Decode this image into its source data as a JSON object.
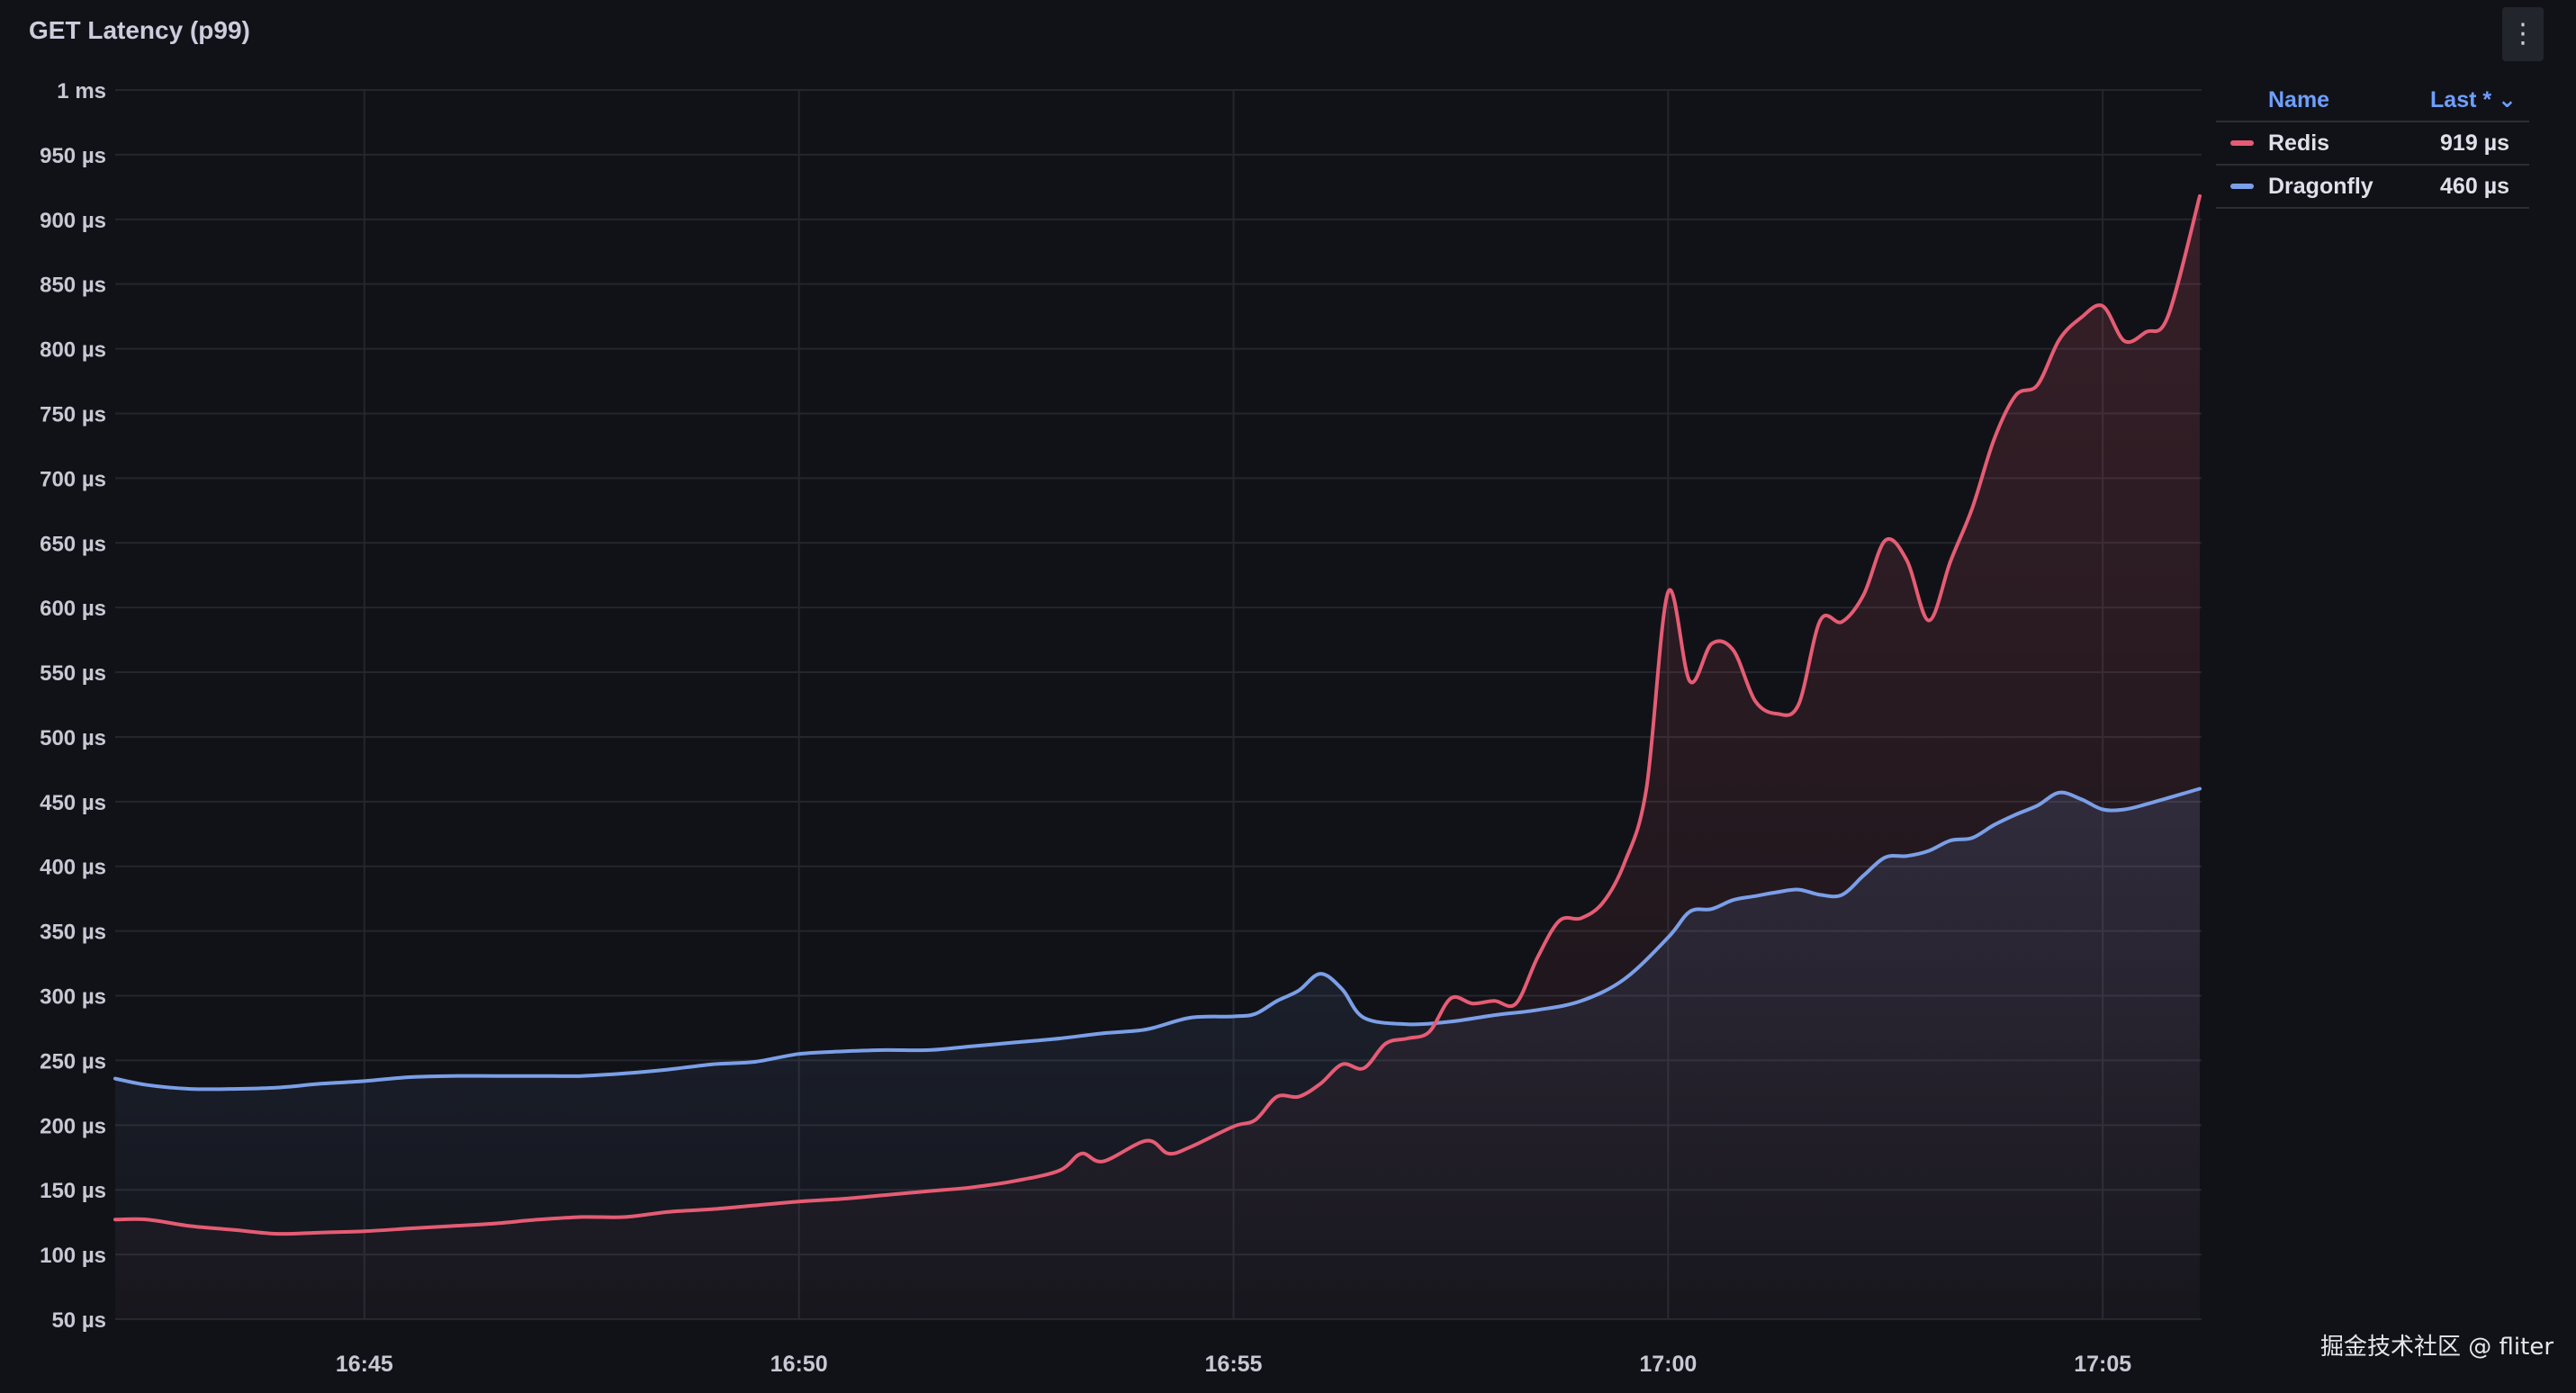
{
  "panel": {
    "title": "GET Latency (p99)",
    "menu_icon": "kebab-menu-icon"
  },
  "legend": {
    "header_name": "Name",
    "header_last": "Last * ⌄",
    "items": [
      {
        "name": "Redis",
        "value": "919 µs",
        "color": "#e55c74"
      },
      {
        "name": "Dragonfly",
        "value": "460 µs",
        "color": "#7b9fe8"
      }
    ]
  },
  "watermark": "掘金技术社区 @ fliter",
  "chart_data": {
    "type": "line",
    "title": "GET Latency (p99)",
    "ylim": [
      50,
      1000
    ],
    "y_ticks": [
      50,
      100,
      150,
      200,
      250,
      300,
      350,
      400,
      450,
      500,
      550,
      600,
      650,
      700,
      750,
      800,
      850,
      900,
      950,
      1000
    ],
    "y_tick_labels": [
      "50 µs",
      "100 µs",
      "150 µs",
      "200 µs",
      "250 µs",
      "300 µs",
      "350 µs",
      "400 µs",
      "450 µs",
      "500 µs",
      "550 µs",
      "600 µs",
      "650 µs",
      "700 µs",
      "750 µs",
      "800 µs",
      "850 µs",
      "900 µs",
      "950 µs",
      "1 ms"
    ],
    "xlim": [
      "16:42:08",
      "17:06:07"
    ],
    "x_ticks": [
      "16:45",
      "16:50",
      "16:55",
      "17:00",
      "17:05"
    ],
    "grid": true,
    "legend_position": "right",
    "series": [
      {
        "name": "Redis",
        "color": "#e55c74",
        "points": [
          [
            "16:42:08",
            127
          ],
          [
            "16:42:30",
            127
          ],
          [
            "16:43:00",
            122
          ],
          [
            "16:43:30",
            119
          ],
          [
            "16:44:00",
            116
          ],
          [
            "16:44:30",
            117
          ],
          [
            "16:45:00",
            118
          ],
          [
            "16:45:30",
            120
          ],
          [
            "16:46:00",
            122
          ],
          [
            "16:46:30",
            124
          ],
          [
            "16:47:00",
            127
          ],
          [
            "16:47:30",
            129
          ],
          [
            "16:48:00",
            129
          ],
          [
            "16:48:30",
            133
          ],
          [
            "16:49:00",
            135
          ],
          [
            "16:49:30",
            138
          ],
          [
            "16:50:00",
            141
          ],
          [
            "16:50:30",
            143
          ],
          [
            "16:51:00",
            146
          ],
          [
            "16:51:30",
            149
          ],
          [
            "16:52:00",
            152
          ],
          [
            "16:52:30",
            157
          ],
          [
            "16:53:00",
            165
          ],
          [
            "16:53:15",
            178
          ],
          [
            "16:53:30",
            172
          ],
          [
            "16:54:00",
            188
          ],
          [
            "16:54:15",
            178
          ],
          [
            "16:54:30",
            183
          ],
          [
            "16:55:00",
            199
          ],
          [
            "16:55:15",
            204
          ],
          [
            "16:55:30",
            222
          ],
          [
            "16:55:45",
            222
          ],
          [
            "16:56:00",
            232
          ],
          [
            "16:56:15",
            247
          ],
          [
            "16:56:30",
            244
          ],
          [
            "16:56:45",
            263
          ],
          [
            "16:57:00",
            267
          ],
          [
            "16:57:15",
            272
          ],
          [
            "16:57:30",
            298
          ],
          [
            "16:57:45",
            294
          ],
          [
            "16:58:00",
            296
          ],
          [
            "16:58:15",
            294
          ],
          [
            "16:58:30",
            330
          ],
          [
            "16:58:45",
            358
          ],
          [
            "16:59:00",
            360
          ],
          [
            "16:59:15",
            372
          ],
          [
            "16:59:30",
            403
          ],
          [
            "16:59:45",
            460
          ],
          [
            "17:00:00",
            612
          ],
          [
            "17:00:15",
            543
          ],
          [
            "17:00:30",
            572
          ],
          [
            "17:00:45",
            567
          ],
          [
            "17:01:00",
            528
          ],
          [
            "17:01:15",
            518
          ],
          [
            "17:01:30",
            525
          ],
          [
            "17:01:45",
            590
          ],
          [
            "17:02:00",
            589
          ],
          [
            "17:02:15",
            610
          ],
          [
            "17:02:30",
            652
          ],
          [
            "17:02:45",
            636
          ],
          [
            "17:03:00",
            590
          ],
          [
            "17:03:15",
            636
          ],
          [
            "17:03:30",
            677
          ],
          [
            "17:03:45",
            730
          ],
          [
            "17:04:00",
            764
          ],
          [
            "17:04:15",
            772
          ],
          [
            "17:04:30",
            807
          ],
          [
            "17:04:45",
            824
          ],
          [
            "17:05:00",
            833
          ],
          [
            "17:05:15",
            806
          ],
          [
            "17:05:30",
            813
          ],
          [
            "17:05:45",
            825
          ],
          [
            "17:06:07",
            918
          ]
        ]
      },
      {
        "name": "Dragonfly",
        "color": "#7b9fe8",
        "points": [
          [
            "16:42:08",
            236
          ],
          [
            "16:42:30",
            231
          ],
          [
            "16:43:00",
            228
          ],
          [
            "16:43:30",
            228
          ],
          [
            "16:44:00",
            229
          ],
          [
            "16:44:30",
            232
          ],
          [
            "16:45:00",
            234
          ],
          [
            "16:45:30",
            237
          ],
          [
            "16:46:00",
            238
          ],
          [
            "16:46:30",
            238
          ],
          [
            "16:47:00",
            238
          ],
          [
            "16:47:30",
            238
          ],
          [
            "16:48:00",
            240
          ],
          [
            "16:48:30",
            243
          ],
          [
            "16:49:00",
            247
          ],
          [
            "16:49:30",
            249
          ],
          [
            "16:50:00",
            255
          ],
          [
            "16:50:30",
            257
          ],
          [
            "16:51:00",
            258
          ],
          [
            "16:51:30",
            258
          ],
          [
            "16:52:00",
            261
          ],
          [
            "16:52:30",
            264
          ],
          [
            "16:53:00",
            267
          ],
          [
            "16:53:30",
            271
          ],
          [
            "16:54:00",
            274
          ],
          [
            "16:54:30",
            283
          ],
          [
            "16:55:00",
            284
          ],
          [
            "16:55:15",
            286
          ],
          [
            "16:55:30",
            296
          ],
          [
            "16:55:45",
            304
          ],
          [
            "16:56:00",
            317
          ],
          [
            "16:56:15",
            305
          ],
          [
            "16:56:30",
            283
          ],
          [
            "16:57:00",
            278
          ],
          [
            "16:57:30",
            280
          ],
          [
            "16:58:00",
            285
          ],
          [
            "16:58:30",
            289
          ],
          [
            "16:59:00",
            296
          ],
          [
            "16:59:30",
            313
          ],
          [
            "17:00:00",
            345
          ],
          [
            "17:00:15",
            365
          ],
          [
            "17:00:30",
            367
          ],
          [
            "17:00:45",
            374
          ],
          [
            "17:01:00",
            377
          ],
          [
            "17:01:15",
            380
          ],
          [
            "17:01:30",
            382
          ],
          [
            "17:01:45",
            378
          ],
          [
            "17:02:00",
            378
          ],
          [
            "17:02:15",
            393
          ],
          [
            "17:02:30",
            407
          ],
          [
            "17:02:45",
            408
          ],
          [
            "17:03:00",
            412
          ],
          [
            "17:03:15",
            420
          ],
          [
            "17:03:30",
            422
          ],
          [
            "17:03:45",
            432
          ],
          [
            "17:04:00",
            440
          ],
          [
            "17:04:15",
            447
          ],
          [
            "17:04:30",
            457
          ],
          [
            "17:04:45",
            452
          ],
          [
            "17:05:00",
            444
          ],
          [
            "17:05:15",
            444
          ],
          [
            "17:05:30",
            448
          ],
          [
            "17:06:07",
            460
          ]
        ]
      }
    ]
  }
}
